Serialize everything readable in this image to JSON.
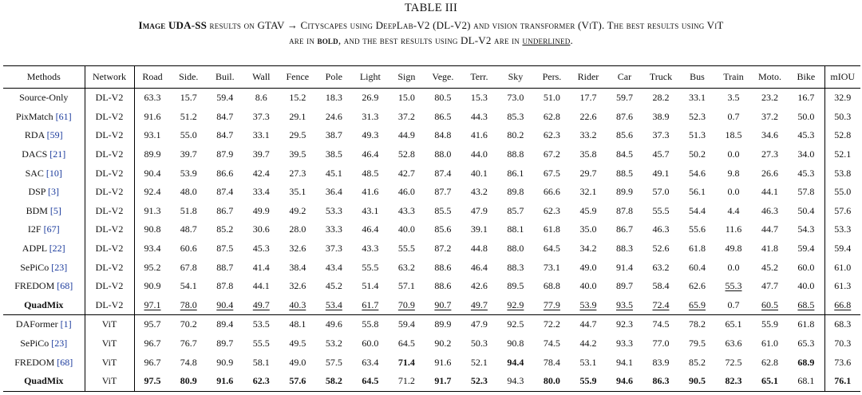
{
  "table_label": "TABLE III",
  "caption": {
    "line1_pre": "Image UDA-SS",
    "line1_mid": " results on GTAV → Cityscapes using DeepLab-V2 (DL-V2) and vision transformer (ViT). The best results using ViT",
    "line2_pre": "are in ",
    "line2_bold": "bold",
    "line2_mid": ", and the best results using DL-V2 are in ",
    "line2_ul": "underlined",
    "line2_end": "."
  },
  "columns": [
    "Methods",
    "Network",
    "Road",
    "Side.",
    "Buil.",
    "Wall",
    "Fence",
    "Pole",
    "Light",
    "Sign",
    "Vege.",
    "Terr.",
    "Sky",
    "Pers.",
    "Rider",
    "Car",
    "Truck",
    "Bus",
    "Train",
    "Moto.",
    "Bike",
    "mIOU"
  ],
  "groups": [
    {
      "rows": [
        {
          "method": "Source-Only",
          "cite": "",
          "network": "DL-V2",
          "values": [
            "63.3",
            "15.7",
            "59.4",
            "8.6",
            "15.2",
            "18.3",
            "26.9",
            "15.0",
            "80.5",
            "15.3",
            "73.0",
            "51.0",
            "17.7",
            "59.7",
            "28.2",
            "33.1",
            "3.5",
            "23.2",
            "16.7",
            "32.9"
          ],
          "ul": [],
          "bold": [],
          "method_bold": false
        },
        {
          "method": "PixMatch ",
          "cite": "[61]",
          "network": "DL-V2",
          "values": [
            "91.6",
            "51.2",
            "84.7",
            "37.3",
            "29.1",
            "24.6",
            "31.3",
            "37.2",
            "86.5",
            "44.3",
            "85.3",
            "62.8",
            "22.6",
            "87.6",
            "38.9",
            "52.3",
            "0.7",
            "37.2",
            "50.0",
            "50.3"
          ],
          "ul": [],
          "bold": [],
          "method_bold": false
        },
        {
          "method": "RDA ",
          "cite": "[59]",
          "network": "DL-V2",
          "values": [
            "93.1",
            "55.0",
            "84.7",
            "33.1",
            "29.5",
            "38.7",
            "49.3",
            "44.9",
            "84.8",
            "41.6",
            "80.2",
            "62.3",
            "33.2",
            "85.6",
            "37.3",
            "51.3",
            "18.5",
            "34.6",
            "45.3",
            "52.8"
          ],
          "ul": [],
          "bold": [],
          "method_bold": false
        },
        {
          "method": "DACS ",
          "cite": "[21]",
          "network": "DL-V2",
          "values": [
            "89.9",
            "39.7",
            "87.9",
            "39.7",
            "39.5",
            "38.5",
            "46.4",
            "52.8",
            "88.0",
            "44.0",
            "88.8",
            "67.2",
            "35.8",
            "84.5",
            "45.7",
            "50.2",
            "0.0",
            "27.3",
            "34.0",
            "52.1"
          ],
          "ul": [],
          "bold": [],
          "method_bold": false
        },
        {
          "method": "SAC ",
          "cite": "[10]",
          "network": "DL-V2",
          "values": [
            "90.4",
            "53.9",
            "86.6",
            "42.4",
            "27.3",
            "45.1",
            "48.5",
            "42.7",
            "87.4",
            "40.1",
            "86.1",
            "67.5",
            "29.7",
            "88.5",
            "49.1",
            "54.6",
            "9.8",
            "26.6",
            "45.3",
            "53.8"
          ],
          "ul": [],
          "bold": [],
          "method_bold": false
        },
        {
          "method": "DSP ",
          "cite": "[3]",
          "network": "DL-V2",
          "values": [
            "92.4",
            "48.0",
            "87.4",
            "33.4",
            "35.1",
            "36.4",
            "41.6",
            "46.0",
            "87.7",
            "43.2",
            "89.8",
            "66.6",
            "32.1",
            "89.9",
            "57.0",
            "56.1",
            "0.0",
            "44.1",
            "57.8",
            "55.0"
          ],
          "ul": [],
          "bold": [],
          "method_bold": false
        },
        {
          "method": "BDM ",
          "cite": "[5]",
          "network": "DL-V2",
          "values": [
            "91.3",
            "51.8",
            "86.7",
            "49.9",
            "49.2",
            "53.3",
            "43.1",
            "43.3",
            "85.5",
            "47.9",
            "85.7",
            "62.3",
            "45.9",
            "87.8",
            "55.5",
            "54.4",
            "4.4",
            "46.3",
            "50.4",
            "57.6"
          ],
          "ul": [],
          "bold": [],
          "method_bold": false
        },
        {
          "method": "I2F ",
          "cite": "[67]",
          "network": "DL-V2",
          "values": [
            "90.8",
            "48.7",
            "85.2",
            "30.6",
            "28.0",
            "33.3",
            "46.4",
            "40.0",
            "85.6",
            "39.1",
            "88.1",
            "61.8",
            "35.0",
            "86.7",
            "46.3",
            "55.6",
            "11.6",
            "44.7",
            "54.3",
            "53.3"
          ],
          "ul": [],
          "bold": [],
          "method_bold": false
        },
        {
          "method": "ADPL ",
          "cite": "[22]",
          "network": "DL-V2",
          "values": [
            "93.4",
            "60.6",
            "87.5",
            "45.3",
            "32.6",
            "37.3",
            "43.3",
            "55.5",
            "87.2",
            "44.8",
            "88.0",
            "64.5",
            "34.2",
            "88.3",
            "52.6",
            "61.8",
            "49.8",
            "41.8",
            "59.4",
            "59.4"
          ],
          "ul": [],
          "bold": [],
          "method_bold": false
        },
        {
          "method": "SePiCo ",
          "cite": "[23]",
          "network": "DL-V2",
          "values": [
            "95.2",
            "67.8",
            "88.7",
            "41.4",
            "38.4",
            "43.4",
            "55.5",
            "63.2",
            "88.6",
            "46.4",
            "88.3",
            "73.1",
            "49.0",
            "91.4",
            "63.2",
            "60.4",
            "0.0",
            "45.2",
            "60.0",
            "61.0"
          ],
          "ul": [],
          "bold": [],
          "method_bold": false
        },
        {
          "method": "FREDOM ",
          "cite": "[68]",
          "network": "DL-V2",
          "values": [
            "90.9",
            "54.1",
            "87.8",
            "44.1",
            "32.6",
            "45.2",
            "51.4",
            "57.1",
            "88.6",
            "42.6",
            "89.5",
            "68.8",
            "40.0",
            "89.7",
            "58.4",
            "62.6",
            "55.3",
            "47.7",
            "40.0",
            "61.3"
          ],
          "ul": [
            16
          ],
          "bold": [],
          "method_bold": false
        },
        {
          "method": "QuadMix",
          "cite": "",
          "network": "DL-V2",
          "values": [
            "97.1",
            "78.0",
            "90.4",
            "49.7",
            "40.3",
            "53.4",
            "61.7",
            "70.9",
            "90.7",
            "49.7",
            "92.9",
            "77.9",
            "53.9",
            "93.5",
            "72.4",
            "65.9",
            "0.7",
            "60.5",
            "68.5",
            "66.8"
          ],
          "ul": [
            0,
            1,
            2,
            3,
            4,
            5,
            6,
            7,
            8,
            9,
            10,
            11,
            12,
            13,
            14,
            15,
            17,
            18,
            19
          ],
          "bold": [],
          "method_bold": true
        }
      ]
    },
    {
      "rows": [
        {
          "method": "DAFormer ",
          "cite": "[1]",
          "network": "ViT",
          "values": [
            "95.7",
            "70.2",
            "89.4",
            "53.5",
            "48.1",
            "49.6",
            "55.8",
            "59.4",
            "89.9",
            "47.9",
            "92.5",
            "72.2",
            "44.7",
            "92.3",
            "74.5",
            "78.2",
            "65.1",
            "55.9",
            "61.8",
            "68.3"
          ],
          "ul": [],
          "bold": [],
          "method_bold": false
        },
        {
          "method": "SePiCo ",
          "cite": "[23]",
          "network": "ViT",
          "values": [
            "96.7",
            "76.7",
            "89.7",
            "55.5",
            "49.5",
            "53.2",
            "60.0",
            "64.5",
            "90.2",
            "50.3",
            "90.8",
            "74.5",
            "44.2",
            "93.3",
            "77.0",
            "79.5",
            "63.6",
            "61.0",
            "65.3",
            "70.3"
          ],
          "ul": [],
          "bold": [],
          "method_bold": false
        },
        {
          "method": "FREDOM ",
          "cite": "[68]",
          "network": "ViT",
          "values": [
            "96.7",
            "74.8",
            "90.9",
            "58.1",
            "49.0",
            "57.5",
            "63.4",
            "71.4",
            "91.6",
            "52.1",
            "94.4",
            "78.4",
            "53.1",
            "94.1",
            "83.9",
            "85.2",
            "72.5",
            "62.8",
            "68.9",
            "73.6"
          ],
          "ul": [],
          "bold": [
            7,
            10,
            18
          ],
          "method_bold": false
        },
        {
          "method": "QuadMix",
          "cite": "",
          "network": "ViT",
          "values": [
            "97.5",
            "80.9",
            "91.6",
            "62.3",
            "57.6",
            "58.2",
            "64.5",
            "71.2",
            "91.7",
            "52.3",
            "94.3",
            "80.0",
            "55.9",
            "94.6",
            "86.3",
            "90.5",
            "82.3",
            "65.1",
            "68.1",
            "76.1"
          ],
          "ul": [],
          "bold": [
            0,
            1,
            2,
            3,
            4,
            5,
            6,
            8,
            9,
            11,
            12,
            13,
            14,
            15,
            16,
            17,
            19
          ],
          "method_bold": true
        }
      ]
    }
  ]
}
